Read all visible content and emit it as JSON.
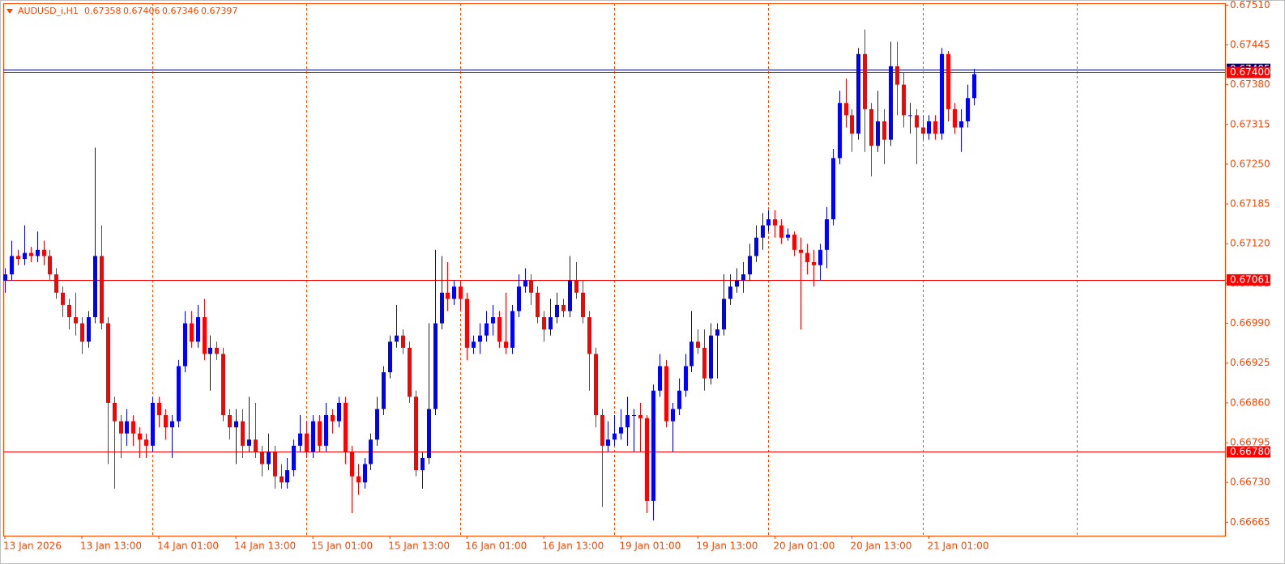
{
  "chart_data": {
    "type": "candlestick",
    "title": "AUDUSD_i,H1",
    "up_color": "#0000ff",
    "down_color": "#ff0000",
    "categories": [
      "13 Jan 2026",
      null,
      null,
      null,
      null,
      null,
      null,
      null,
      null,
      null,
      null,
      null,
      "13 Jan 13:00",
      null,
      null,
      null,
      null,
      null,
      null,
      null,
      null,
      null,
      null,
      null,
      "14 Jan 01:00",
      null,
      null,
      null,
      null,
      null,
      null,
      null,
      null,
      null,
      null,
      null,
      "14 Jan 13:00",
      null,
      null,
      null,
      null,
      null,
      null,
      null,
      null,
      null,
      null,
      null,
      "15 Jan 01:00",
      null,
      null,
      null,
      null,
      null,
      null,
      null,
      null,
      null,
      null,
      null,
      "15 Jan 13:00",
      null,
      null,
      null,
      null,
      null,
      null,
      null,
      null,
      null,
      null,
      null,
      "16 Jan 01:00",
      null,
      null,
      null,
      null,
      null,
      null,
      null,
      null,
      null,
      null,
      null,
      "16 Jan 13:00",
      null,
      null,
      null,
      null,
      null,
      null,
      null,
      null,
      null,
      null,
      null,
      "19 Jan 01:00",
      null,
      null,
      null,
      null,
      null,
      null,
      null,
      null,
      null,
      null,
      null,
      "19 Jan 13:00",
      null,
      null,
      null,
      null,
      null,
      null,
      null,
      null,
      null,
      null,
      null,
      "20 Jan 01:00",
      null,
      null,
      null,
      null,
      null,
      null,
      null,
      null,
      null,
      null,
      null,
      "20 Jan 13:00",
      null,
      null,
      null,
      null,
      null,
      null,
      null,
      null,
      null,
      null,
      null,
      "21 Jan 01:00",
      null,
      null,
      null,
      null,
      null,
      null,
      null
    ],
    "open": [
      0.6706,
      0.6707,
      0.671,
      0.67095,
      0.67105,
      0.671,
      0.6711,
      0.671,
      0.6707,
      0.6704,
      0.6702,
      0.67,
      0.6699,
      0.6696,
      0.67,
      0.671,
      0.6699,
      0.6686,
      0.6683,
      0.6681,
      0.6683,
      0.6681,
      0.668,
      0.6679,
      0.6686,
      0.6684,
      0.6682,
      0.6683,
      0.6692,
      0.6699,
      0.6696,
      0.67,
      0.6694,
      0.6695,
      0.6694,
      0.6684,
      0.6682,
      0.6683,
      0.6679,
      0.668,
      0.6678,
      0.6676,
      0.6678,
      0.6674,
      0.6673,
      0.6675,
      0.6679,
      0.6681,
      0.6678,
      0.6683,
      0.6679,
      0.6684,
      0.6683,
      0.6686,
      0.6678,
      0.6674,
      0.6673,
      0.6676,
      0.668,
      0.6685,
      0.6691,
      0.6696,
      0.6697,
      0.6695,
      0.6687,
      0.6675,
      0.6677,
      0.6685,
      0.6699,
      0.6704,
      0.6703,
      0.6705,
      0.6703,
      0.6695,
      0.6696,
      0.6697,
      0.6699,
      0.67,
      0.6696,
      0.6695,
      0.6701,
      0.6705,
      0.6706,
      0.6704,
      0.67,
      0.6698,
      0.67,
      0.6702,
      0.6701,
      0.6706,
      0.6704,
      0.67,
      0.6694,
      0.6684,
      0.6679,
      0.668,
      0.6681,
      0.6682,
      0.6684,
      0.6684,
      0.66835,
      0.667,
      0.6688,
      0.6692,
      0.6683,
      0.6685,
      0.6688,
      0.6692,
      0.6696,
      0.6695,
      0.669,
      0.6697,
      0.6698,
      0.6703,
      0.6705,
      0.6706,
      0.6707,
      0.671,
      0.6713,
      0.6715,
      0.6716,
      0.6715,
      0.6713,
      0.67135,
      0.6711,
      0.67105,
      0.6709,
      0.67085,
      0.6711,
      0.6716,
      0.6726,
      0.6735,
      0.6733,
      0.673,
      0.6743,
      0.6734,
      0.6728,
      0.6732,
      0.6729,
      0.6741,
      0.6738,
      0.6733,
      0.6733,
      0.6731,
      0.673,
      0.6732,
      0.673,
      0.6743,
      0.6734,
      0.6731,
      0.6732,
      0.67358
    ],
    "high": [
      0.6708,
      0.67125,
      0.6711,
      0.6715,
      0.67115,
      0.6714,
      0.67125,
      0.6711,
      0.6708,
      0.6705,
      0.6703,
      0.6704,
      0.67,
      0.6701,
      0.67277,
      0.6715,
      0.67,
      0.6687,
      0.6684,
      0.6685,
      0.6684,
      0.6682,
      0.6681,
      0.6687,
      0.6687,
      0.6685,
      0.6684,
      0.6693,
      0.6701,
      0.6701,
      0.6702,
      0.6703,
      0.6697,
      0.6696,
      0.6695,
      0.6685,
      0.6685,
      0.6685,
      0.6687,
      0.6686,
      0.6679,
      0.6681,
      0.6679,
      0.6676,
      0.6677,
      0.668,
      0.6684,
      0.6683,
      0.6684,
      0.6684,
      0.6686,
      0.6685,
      0.6687,
      0.6687,
      0.6679,
      0.6676,
      0.6677,
      0.6681,
      0.6687,
      0.6692,
      0.6697,
      0.6702,
      0.6698,
      0.6696,
      0.6688,
      0.6678,
      0.6699,
      0.6711,
      0.671,
      0.6709,
      0.6706,
      0.6706,
      0.6704,
      0.6697,
      0.6699,
      0.6701,
      0.6702,
      0.6701,
      0.6704,
      0.6702,
      0.6707,
      0.6708,
      0.6707,
      0.6705,
      0.6701,
      0.6703,
      0.6704,
      0.6703,
      0.671,
      0.6709,
      0.6706,
      0.6701,
      0.6695,
      0.6685,
      0.6683,
      0.6684,
      0.6685,
      0.6687,
      0.6685,
      0.6686,
      0.6684,
      0.6689,
      0.6694,
      0.6693,
      0.6686,
      0.669,
      0.6694,
      0.6701,
      0.6698,
      0.6698,
      0.6699,
      0.6699,
      0.6707,
      0.6707,
      0.6708,
      0.6709,
      0.6712,
      0.6715,
      0.6717,
      0.67175,
      0.67175,
      0.6716,
      0.67145,
      0.6714,
      0.6713,
      0.6712,
      0.6711,
      0.6712,
      0.6718,
      0.67275,
      0.6737,
      0.6739,
      0.6734,
      0.6744,
      0.6747,
      0.6735,
      0.6737,
      0.6734,
      0.6745,
      0.6745,
      0.674,
      0.6735,
      0.6734,
      0.6733,
      0.6733,
      0.6733,
      0.6744,
      0.67435,
      0.6735,
      0.6734,
      0.6738,
      0.67406
    ],
    "low": [
      0.6704,
      0.6706,
      0.67085,
      0.67085,
      0.6709,
      0.6709,
      0.67085,
      0.6706,
      0.6703,
      0.67,
      0.6698,
      0.6697,
      0.6694,
      0.6695,
      0.6699,
      0.6698,
      0.6676,
      0.6672,
      0.6677,
      0.6679,
      0.6679,
      0.6677,
      0.6677,
      0.6678,
      0.6682,
      0.668,
      0.6677,
      0.6682,
      0.6691,
      0.6695,
      0.6695,
      0.6693,
      0.6688,
      0.6693,
      0.6683,
      0.668,
      0.6676,
      0.6677,
      0.6678,
      0.6677,
      0.6674,
      0.6675,
      0.6672,
      0.6672,
      0.6672,
      0.6674,
      0.6678,
      0.6677,
      0.6677,
      0.6678,
      0.6678,
      0.6681,
      0.6682,
      0.6676,
      0.6668,
      0.6671,
      0.6672,
      0.6675,
      0.6679,
      0.6684,
      0.669,
      0.6695,
      0.6694,
      0.6686,
      0.6674,
      0.6672,
      0.6676,
      0.6684,
      0.6698,
      0.6701,
      0.6702,
      0.6701,
      0.6693,
      0.6694,
      0.6694,
      0.6696,
      0.6697,
      0.6695,
      0.6694,
      0.6694,
      0.67,
      0.6704,
      0.6702,
      0.6699,
      0.6696,
      0.6697,
      0.6699,
      0.67,
      0.67,
      0.6703,
      0.6699,
      0.6688,
      0.6682,
      0.6669,
      0.6678,
      0.6679,
      0.668,
      0.6679,
      0.6678,
      0.6678,
      0.6668,
      0.66668,
      0.6687,
      0.6682,
      0.6678,
      0.6684,
      0.6687,
      0.6691,
      0.6694,
      0.6688,
      0.6689,
      0.669,
      0.6697,
      0.6702,
      0.6704,
      0.6704,
      0.6706,
      0.6709,
      0.6711,
      0.6714,
      0.6713,
      0.6712,
      0.67125,
      0.671,
      0.6698,
      0.6707,
      0.6705,
      0.6706,
      0.6708,
      0.6715,
      0.6725,
      0.6731,
      0.6727,
      0.6729,
      0.6727,
      0.6723,
      0.6727,
      0.6725,
      0.6728,
      0.6733,
      0.6731,
      0.673,
      0.6725,
      0.6729,
      0.6729,
      0.6729,
      0.6729,
      0.6732,
      0.673,
      0.6727,
      0.6731,
      0.67346
    ],
    "close": [
      0.6707,
      0.671,
      0.67095,
      0.67105,
      0.671,
      0.6711,
      0.671,
      0.6707,
      0.6704,
      0.6702,
      0.67,
      0.6699,
      0.6696,
      0.67,
      0.671,
      0.6699,
      0.6686,
      0.6683,
      0.6681,
      0.6683,
      0.6681,
      0.668,
      0.6679,
      0.6686,
      0.6684,
      0.6682,
      0.6683,
      0.6692,
      0.6699,
      0.6696,
      0.67,
      0.6694,
      0.6695,
      0.6694,
      0.6684,
      0.6682,
      0.6683,
      0.6679,
      0.668,
      0.6678,
      0.6676,
      0.6678,
      0.6674,
      0.6673,
      0.6675,
      0.6679,
      0.6681,
      0.6678,
      0.6683,
      0.6679,
      0.6684,
      0.6683,
      0.6686,
      0.6678,
      0.6674,
      0.6673,
      0.6676,
      0.668,
      0.6685,
      0.6691,
      0.6696,
      0.6697,
      0.6695,
      0.6687,
      0.6675,
      0.6677,
      0.6685,
      0.6699,
      0.6704,
      0.6703,
      0.6705,
      0.6703,
      0.6695,
      0.6696,
      0.6697,
      0.6699,
      0.67,
      0.6696,
      0.6695,
      0.6701,
      0.6705,
      0.6706,
      0.6704,
      0.67,
      0.6698,
      0.67,
      0.6702,
      0.6701,
      0.6706,
      0.6704,
      0.67,
      0.6694,
      0.6684,
      0.6679,
      0.668,
      0.6681,
      0.6682,
      0.6684,
      0.6684,
      0.66835,
      0.667,
      0.6688,
      0.6692,
      0.6683,
      0.6685,
      0.6688,
      0.6692,
      0.6696,
      0.6695,
      0.669,
      0.6697,
      0.6698,
      0.6703,
      0.6705,
      0.6706,
      0.6707,
      0.671,
      0.6713,
      0.6715,
      0.6716,
      0.6715,
      0.6713,
      0.67135,
      0.6711,
      0.67105,
      0.6709,
      0.67085,
      0.6711,
      0.6716,
      0.6726,
      0.6735,
      0.6733,
      0.673,
      0.6743,
      0.6734,
      0.6728,
      0.6732,
      0.6729,
      0.6741,
      0.6738,
      0.6733,
      0.6733,
      0.6731,
      0.673,
      0.6732,
      0.673,
      0.6743,
      0.6734,
      0.6731,
      0.6732,
      0.67358,
      0.67397
    ],
    "ylim": [
      0.66643,
      0.67513
    ],
    "yticks": [
      {
        "value": 0.6751,
        "label": "0.67510"
      },
      {
        "value": 0.67445,
        "label": "0.67445"
      },
      {
        "value": 0.6738,
        "label": "0.67380"
      },
      {
        "value": 0.67315,
        "label": "0.67315"
      },
      {
        "value": 0.6725,
        "label": "0.67250"
      },
      {
        "value": 0.67185,
        "label": "0.67185"
      },
      {
        "value": 0.6712,
        "label": "0.67120"
      },
      {
        "value": 0.67055,
        "label": "0.67055"
      },
      {
        "value": 0.6699,
        "label": "0.66990"
      },
      {
        "value": 0.66925,
        "label": "0.66925"
      },
      {
        "value": 0.6686,
        "label": "0.66860"
      },
      {
        "value": 0.66795,
        "label": "0.66795"
      },
      {
        "value": 0.6673,
        "label": "0.66730"
      },
      {
        "value": 0.66665,
        "label": "0.66665"
      }
    ],
    "hlines": [
      {
        "value": 0.67405,
        "label": "0.67405",
        "color": "#00008b"
      },
      {
        "value": 0.674,
        "label": "0.67400",
        "color": "#ff0000"
      },
      {
        "value": 0.67061,
        "label": "0.67061",
        "color": "#ff0000"
      },
      {
        "value": 0.6678,
        "label": "0.66780",
        "color": "#ff0000"
      }
    ]
  }
}
